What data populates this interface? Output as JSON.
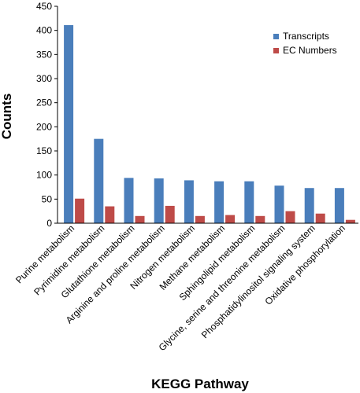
{
  "chart_data": {
    "type": "bar",
    "title": "",
    "xlabel": "KEGG Pathway",
    "ylabel": "Counts",
    "ylim": [
      0,
      450
    ],
    "yticks": [
      0,
      50,
      100,
      150,
      200,
      250,
      300,
      350,
      400,
      450
    ],
    "grid": false,
    "legend_position": "top-right",
    "categories": [
      "Purine metabolism",
      "Pyrimidine metabolism",
      "Glutathione metabolism",
      "Arginine and proline metabolism",
      "Nitrogen metabolism",
      "Methane metabolism",
      "Sphingolipid metabolism",
      "Glycine, serine and threonine metabolism",
      "Phosphatidylinositol signaling system",
      "Oxidative phosphorylation"
    ],
    "series": [
      {
        "name": "Transcripts",
        "color": "#4a7ebb",
        "values": [
          411,
          175,
          94,
          93,
          89,
          87,
          87,
          78,
          73,
          73
        ]
      },
      {
        "name": "EC Numbers",
        "color": "#be4b48",
        "values": [
          51,
          35,
          15,
          36,
          15,
          17,
          15,
          25,
          20,
          7
        ]
      }
    ]
  }
}
